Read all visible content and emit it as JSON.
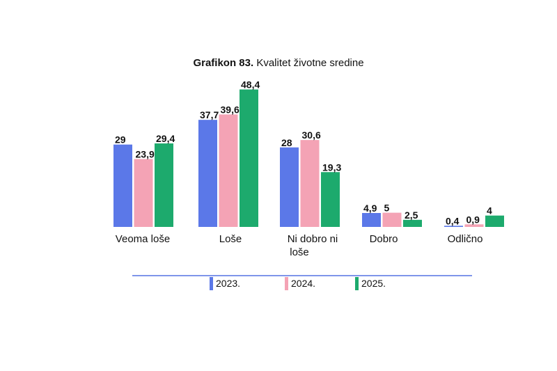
{
  "title": {
    "prefix": "Grafikon 83.",
    "text": "Kvalitet životne sredine"
  },
  "colors": {
    "series2023": "#5b78e8",
    "series2024": "#f4a3b5",
    "series2025": "#1daa6d",
    "legend_line": "#7f95ea"
  },
  "chart_data": {
    "type": "bar",
    "title": "Grafikon 83. Kvalitet životne sredine",
    "categories": [
      "Veoma loše",
      "Loše",
      "Ni dobro ni loše",
      "Dobro",
      "Odlično"
    ],
    "series": [
      {
        "name": "2023.",
        "values": [
          29,
          37.7,
          28,
          4.9,
          0.4
        ],
        "labels": [
          "29",
          "37,7",
          "28",
          "4,9",
          "0,4"
        ]
      },
      {
        "name": "2024.",
        "values": [
          23.9,
          39.6,
          30.6,
          5,
          0.9
        ],
        "labels": [
          "23,9",
          "39,6",
          "30,6",
          "5",
          "0,9"
        ]
      },
      {
        "name": "2025.",
        "values": [
          29.4,
          48.4,
          19.3,
          2.5,
          4
        ],
        "labels": [
          "29,4",
          "48,4",
          "19,3",
          "2,5",
          "4"
        ]
      }
    ],
    "ylim": [
      0,
      50
    ],
    "grid": false,
    "legend_position": "bottom"
  }
}
